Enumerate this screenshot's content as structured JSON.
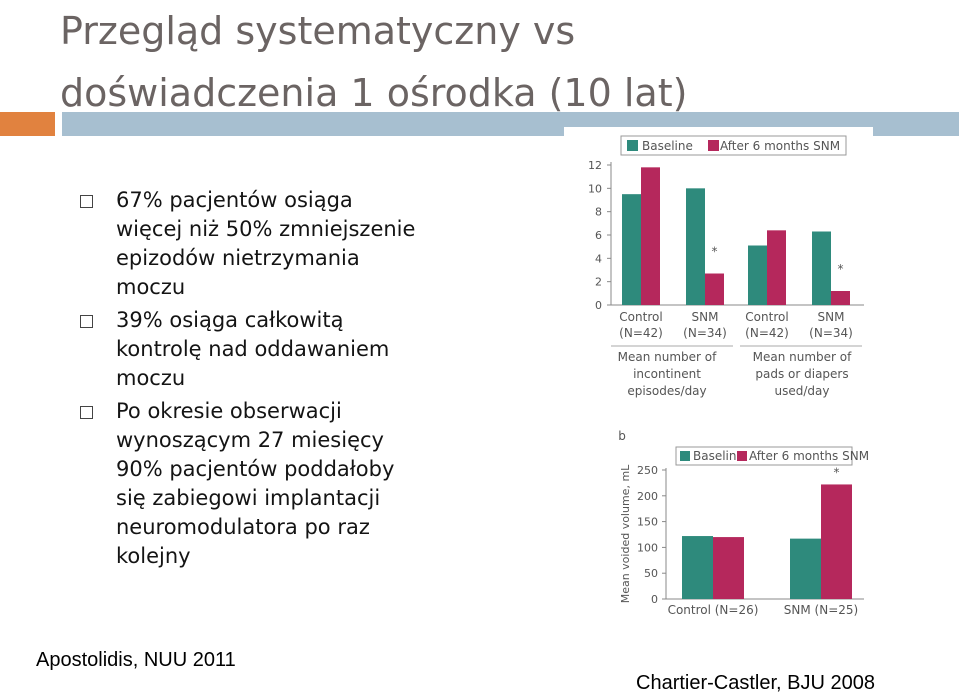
{
  "slide": {
    "title_lines": [
      "Przegląd systematyczny vs",
      "doświadczenia 1 ośrodka (10 lat)"
    ],
    "bullets": [
      {
        "lines": [
          "67% pacjentów osiąga",
          "więcej niż 50% zmniejszenie",
          "epizodów nietrzymania",
          "moczu"
        ]
      },
      {
        "lines": [
          "39% osiąga całkowitą",
          "kontrolę nad oddawaniem",
          "moczu"
        ]
      },
      {
        "lines": [
          "Po okresie obserwacji",
          "wynoszącym 27 miesięcy",
          "90% pacjentów poddałoby",
          "się zabiegowi implantacji",
          "neuromodulatora po raz",
          "kolejny"
        ]
      }
    ],
    "citation_left": "Apostolidis, NUU 2011",
    "citation_right": "Chartier-Castler, BJU 2008",
    "colors": {
      "baseline": "#2e8a7c",
      "after": "#b5285c",
      "accent_orange": "#e1823f",
      "accent_blue": "#a7bfd0"
    }
  },
  "chart_data": [
    {
      "type": "bar",
      "legend": [
        "Baseline",
        "After 6 months SNM"
      ],
      "categories": [
        "Control\n(N=42)",
        "SNM\n(N=34)",
        "Control\n(N=42)",
        "SNM\n(N=34)"
      ],
      "group_labels": [
        "Mean number of\nincontinent\nepisodes/day",
        "Mean number of\npads or diapers\nused/day"
      ],
      "series": [
        {
          "name": "Baseline",
          "values": [
            9.5,
            10,
            5.1,
            6.3
          ]
        },
        {
          "name": "After 6 months SNM",
          "values": [
            11.8,
            2.7,
            6.4,
            1.2
          ]
        }
      ],
      "significance": [
        "",
        "*",
        "",
        "*"
      ],
      "yticks": [
        0,
        2,
        4,
        6,
        8,
        10,
        12
      ],
      "ylim": [
        0,
        12
      ]
    },
    {
      "type": "bar",
      "panel_label": "b",
      "legend": [
        "Baseline",
        "After 6 months SNM"
      ],
      "categories": [
        "Control (N=26)",
        "SNM (N=25)"
      ],
      "series": [
        {
          "name": "Baseline",
          "values": [
            122,
            117
          ]
        },
        {
          "name": "After 6 months SNM",
          "values": [
            120,
            222
          ]
        }
      ],
      "significance": [
        "",
        "*"
      ],
      "ylabel": "Mean voided volume, mL",
      "yticks": [
        0,
        50,
        100,
        150,
        200,
        250
      ],
      "ylim": [
        0,
        250
      ]
    }
  ]
}
